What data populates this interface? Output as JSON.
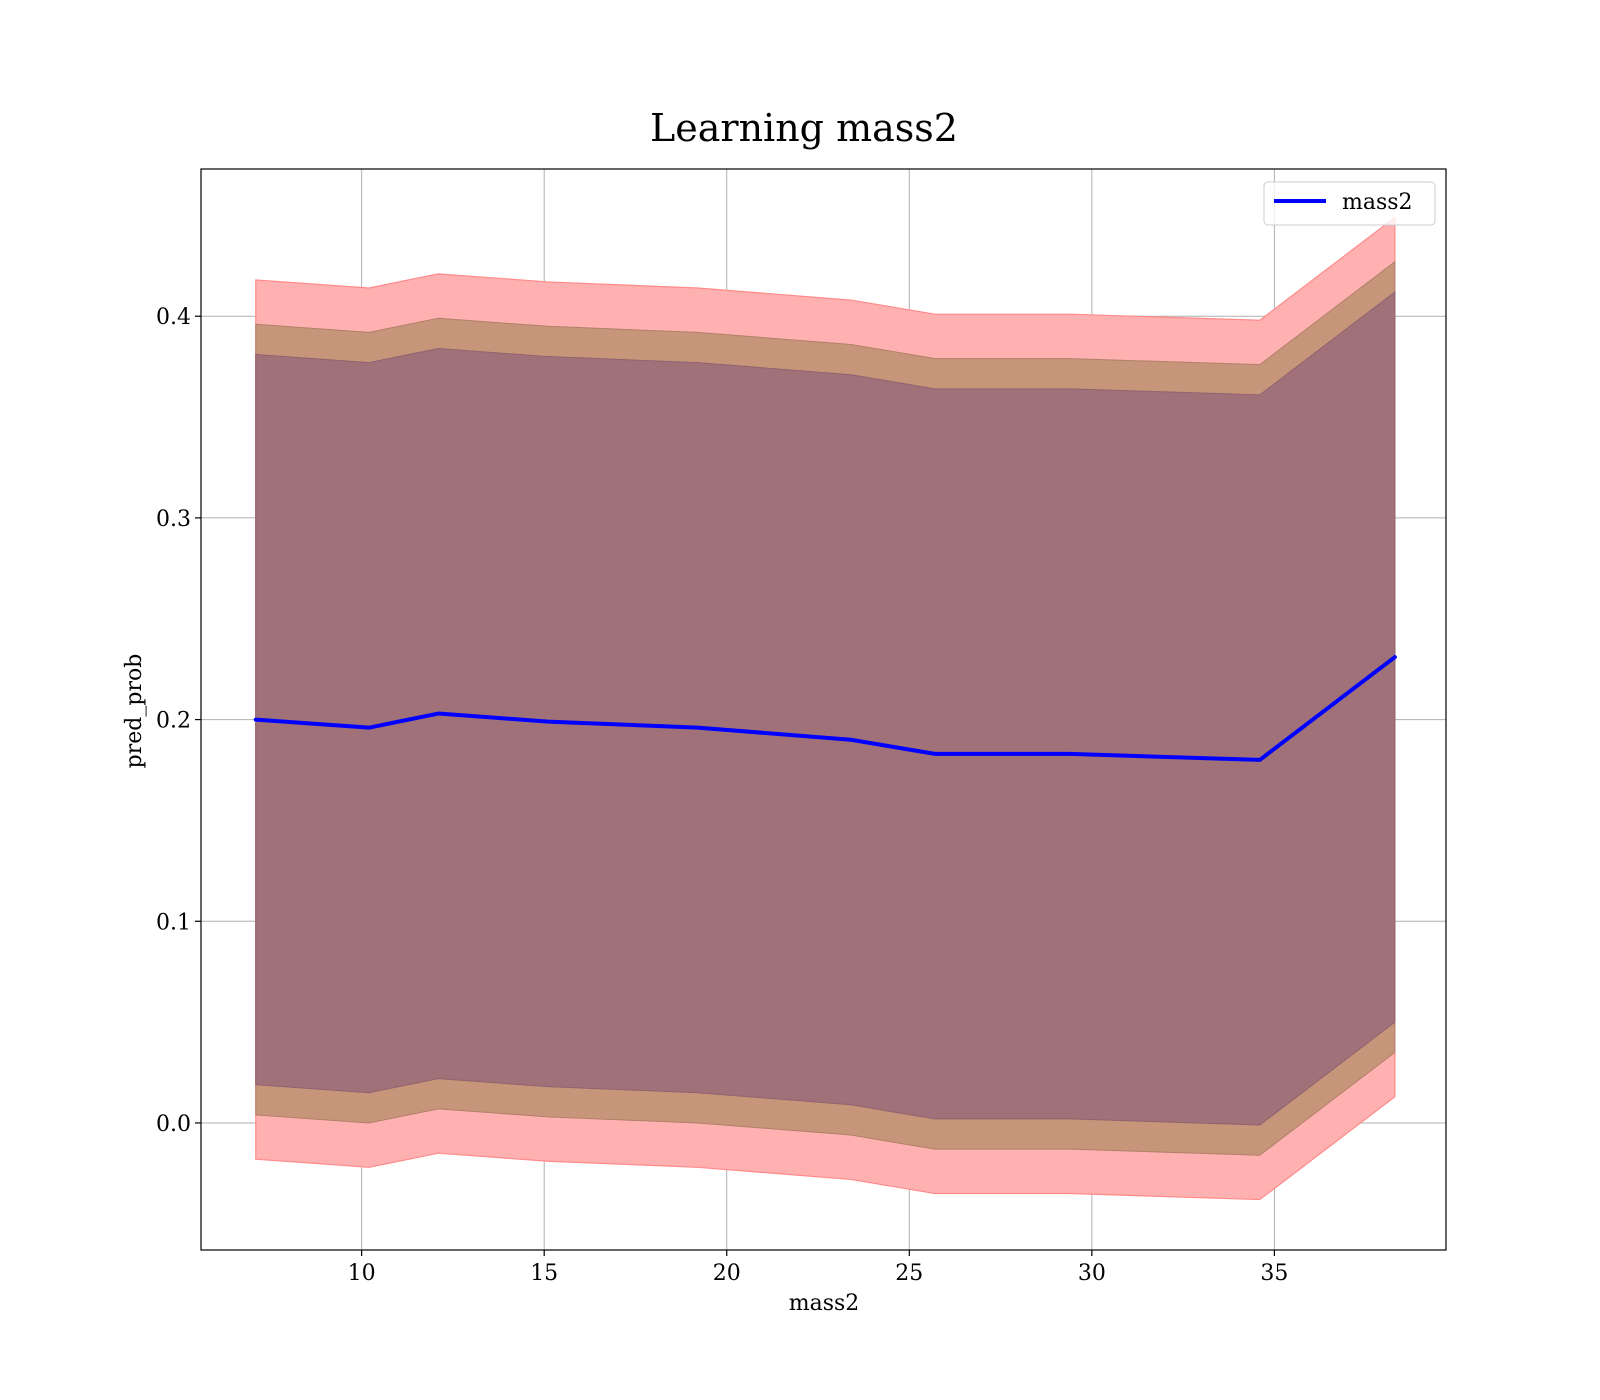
{
  "chart_data": {
    "type": "line",
    "title": "Learning mass2",
    "xlabel": "mass2",
    "ylabel": "pred_prob",
    "xlim": [
      5.6,
      39.7
    ],
    "ylim": [
      -0.063,
      0.473
    ],
    "xticks": [
      10,
      15,
      20,
      25,
      30,
      35
    ],
    "yticks": [
      0.0,
      0.1,
      0.2,
      0.3,
      0.4
    ],
    "ytick_labels": [
      "0.0",
      "0.1",
      "0.2",
      "0.3",
      "0.4"
    ],
    "xtick_labels": [
      "10",
      "15",
      "20",
      "25",
      "30",
      "35"
    ],
    "grid": true,
    "legend_position": "top-right",
    "colors": {
      "line": "#0000ff",
      "outer_band": "#ff0000",
      "inner_band": "#008000",
      "grid": "#b0b0b0"
    },
    "x": [
      7.1,
      10.2,
      12.1,
      15.1,
      19.2,
      23.4,
      25.7,
      29.4,
      34.6,
      38.3
    ],
    "series": [
      {
        "name": "mass2",
        "values": [
          0.2,
          0.196,
          0.203,
          0.199,
          0.196,
          0.19,
          0.183,
          0.183,
          0.18,
          0.231
        ]
      }
    ],
    "bands": [
      {
        "kind": "outer",
        "upper": [
          0.418,
          0.414,
          0.421,
          0.417,
          0.414,
          0.408,
          0.401,
          0.401,
          0.398,
          0.449
        ],
        "lower": [
          -0.018,
          -0.022,
          -0.015,
          -0.019,
          -0.022,
          -0.028,
          -0.035,
          -0.035,
          -0.038,
          0.013
        ]
      },
      {
        "kind": "inner",
        "upper": [
          0.381,
          0.377,
          0.384,
          0.38,
          0.377,
          0.371,
          0.364,
          0.364,
          0.361,
          0.412
        ],
        "lower": [
          0.019,
          0.015,
          0.022,
          0.018,
          0.015,
          0.009,
          0.002,
          0.002,
          -0.001,
          0.05
        ]
      },
      {
        "kind": "middle-brown",
        "upper": [
          0.396,
          0.392,
          0.399,
          0.395,
          0.392,
          0.386,
          0.379,
          0.379,
          0.376,
          0.427
        ],
        "lower": [
          0.004,
          0.0,
          0.007,
          0.003,
          0.0,
          -0.006,
          -0.013,
          -0.013,
          -0.016,
          0.035
        ]
      }
    ]
  }
}
